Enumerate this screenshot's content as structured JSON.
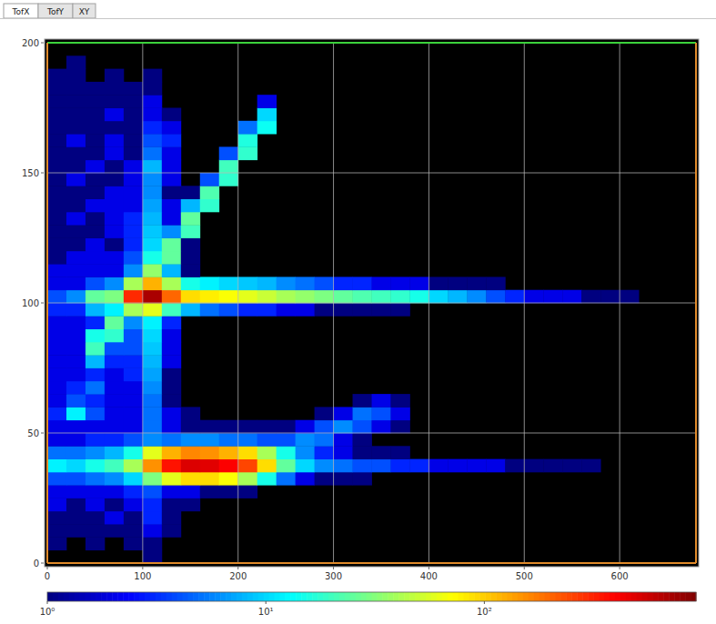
{
  "chart_data": {
    "type": "heatmap",
    "tabs": [
      "TofX",
      "TofY",
      "XY"
    ],
    "xlim": [
      0,
      680
    ],
    "ylim": [
      0,
      200
    ],
    "xticks": [
      0,
      100,
      200,
      300,
      400,
      500,
      600
    ],
    "yticks": [
      0,
      50,
      100,
      150,
      200
    ],
    "grid": true,
    "xbins": [
      0,
      20,
      40,
      60,
      80,
      100,
      120,
      140,
      160,
      180,
      200,
      220,
      240,
      260,
      280,
      300,
      320,
      340,
      360,
      380,
      400,
      420,
      440,
      460,
      480,
      500,
      520,
      540,
      560,
      580,
      600,
      620,
      640,
      660,
      680
    ],
    "ybins": [
      0,
      5,
      10,
      15,
      20,
      25,
      30,
      35,
      40,
      45,
      50,
      55,
      60,
      65,
      70,
      75,
      80,
      85,
      90,
      95,
      100,
      105,
      110,
      115,
      120,
      125,
      130,
      135,
      140,
      145,
      150,
      155,
      160,
      165,
      170,
      175,
      180,
      185,
      190,
      195,
      200
    ],
    "counts": [
      [
        0,
        0,
        0,
        0,
        0,
        1,
        0,
        0,
        0,
        0,
        0,
        0,
        0,
        0,
        0,
        0,
        0,
        0,
        0,
        0,
        0,
        0,
        0,
        0,
        0,
        0,
        0,
        0,
        0,
        0,
        0,
        0,
        0,
        0
      ],
      [
        1,
        0,
        1,
        0,
        1,
        1,
        0,
        0,
        0,
        0,
        0,
        0,
        0,
        0,
        0,
        0,
        0,
        0,
        0,
        0,
        0,
        0,
        0,
        0,
        0,
        0,
        0,
        0,
        0,
        0,
        0,
        0,
        0,
        0
      ],
      [
        1,
        1,
        1,
        1,
        1,
        2,
        1,
        0,
        0,
        0,
        0,
        0,
        0,
        0,
        0,
        0,
        0,
        0,
        0,
        0,
        0,
        0,
        0,
        0,
        0,
        0,
        0,
        0,
        0,
        0,
        0,
        0,
        0,
        0
      ],
      [
        1,
        1,
        1,
        2,
        1,
        3,
        1,
        0,
        0,
        0,
        0,
        0,
        0,
        0,
        0,
        0,
        0,
        0,
        0,
        0,
        0,
        0,
        0,
        0,
        0,
        0,
        0,
        0,
        0,
        0,
        0,
        0,
        0,
        0
      ],
      [
        2,
        1,
        2,
        1,
        2,
        3,
        1,
        1,
        0,
        0,
        0,
        0,
        0,
        0,
        0,
        0,
        0,
        0,
        0,
        0,
        0,
        0,
        0,
        0,
        0,
        0,
        0,
        0,
        0,
        0,
        0,
        0,
        0,
        0
      ],
      [
        2,
        2,
        2,
        2,
        3,
        4,
        2,
        2,
        1,
        1,
        1,
        0,
        0,
        0,
        0,
        0,
        0,
        0,
        0,
        0,
        0,
        0,
        0,
        0,
        0,
        0,
        0,
        0,
        0,
        0,
        0,
        0,
        0,
        0
      ],
      [
        4,
        4,
        5,
        6,
        10,
        30,
        60,
        90,
        90,
        70,
        40,
        15,
        5,
        2,
        1,
        1,
        1,
        0,
        0,
        0,
        0,
        0,
        0,
        0,
        0,
        0,
        0,
        0,
        0,
        0,
        0,
        0,
        0,
        0
      ],
      [
        12,
        10,
        15,
        20,
        40,
        150,
        350,
        500,
        480,
        400,
        250,
        90,
        25,
        10,
        6,
        5,
        4,
        4,
        3,
        3,
        2,
        2,
        2,
        2,
        1,
        1,
        1,
        1,
        1,
        0,
        0,
        0,
        0,
        0
      ],
      [
        5,
        5,
        6,
        8,
        15,
        60,
        120,
        160,
        150,
        120,
        90,
        40,
        15,
        6,
        3,
        2,
        1,
        1,
        1,
        0,
        0,
        0,
        0,
        0,
        0,
        0,
        0,
        0,
        0,
        0,
        0,
        0,
        0,
        0
      ],
      [
        2,
        2,
        3,
        3,
        4,
        6,
        5,
        6,
        6,
        5,
        5,
        4,
        4,
        6,
        5,
        2,
        1,
        0,
        0,
        0,
        0,
        0,
        0,
        0,
        0,
        0,
        0,
        0,
        0,
        0,
        0,
        0,
        0,
        0
      ],
      [
        2,
        2,
        2,
        2,
        2,
        5,
        2,
        1,
        1,
        1,
        1,
        1,
        1,
        2,
        4,
        6,
        4,
        2,
        1,
        0,
        0,
        0,
        0,
        0,
        0,
        0,
        0,
        0,
        0,
        0,
        0,
        0,
        0,
        0
      ],
      [
        3,
        12,
        4,
        2,
        2,
        5,
        2,
        1,
        0,
        0,
        0,
        0,
        0,
        0,
        1,
        2,
        5,
        4,
        2,
        0,
        0,
        0,
        0,
        0,
        0,
        0,
        0,
        0,
        0,
        0,
        0,
        0,
        0,
        0
      ],
      [
        2,
        4,
        3,
        2,
        2,
        5,
        1,
        0,
        0,
        0,
        0,
        0,
        0,
        0,
        0,
        0,
        1,
        2,
        1,
        0,
        0,
        0,
        0,
        0,
        0,
        0,
        0,
        0,
        0,
        0,
        0,
        0,
        0,
        0
      ],
      [
        2,
        3,
        5,
        2,
        2,
        6,
        1,
        0,
        0,
        0,
        0,
        0,
        0,
        0,
        0,
        0,
        0,
        0,
        0,
        0,
        0,
        0,
        0,
        0,
        0,
        0,
        0,
        0,
        0,
        0,
        0,
        0,
        0,
        0
      ],
      [
        2,
        2,
        3,
        2,
        3,
        7,
        1,
        0,
        0,
        0,
        0,
        0,
        0,
        0,
        0,
        0,
        0,
        0,
        0,
        0,
        0,
        0,
        0,
        0,
        0,
        0,
        0,
        0,
        0,
        0,
        0,
        0,
        0,
        0
      ],
      [
        2,
        2,
        8,
        3,
        3,
        8,
        2,
        0,
        0,
        0,
        0,
        0,
        0,
        0,
        0,
        0,
        0,
        0,
        0,
        0,
        0,
        0,
        0,
        0,
        0,
        0,
        0,
        0,
        0,
        0,
        0,
        0,
        0,
        0
      ],
      [
        2,
        2,
        20,
        4,
        4,
        9,
        2,
        0,
        0,
        0,
        0,
        0,
        0,
        0,
        0,
        0,
        0,
        0,
        0,
        0,
        0,
        0,
        0,
        0,
        0,
        0,
        0,
        0,
        0,
        0,
        0,
        0,
        0,
        0
      ],
      [
        2,
        2,
        15,
        18,
        4,
        10,
        2,
        0,
        0,
        0,
        0,
        0,
        0,
        0,
        0,
        0,
        0,
        0,
        0,
        0,
        0,
        0,
        0,
        0,
        0,
        0,
        0,
        0,
        0,
        0,
        0,
        0,
        0,
        0
      ],
      [
        2,
        2,
        3,
        25,
        6,
        12,
        3,
        0,
        0,
        0,
        0,
        0,
        0,
        0,
        0,
        0,
        0,
        0,
        0,
        0,
        0,
        0,
        0,
        0,
        0,
        0,
        0,
        0,
        0,
        0,
        0,
        0,
        0,
        0
      ],
      [
        3,
        3,
        8,
        12,
        40,
        60,
        20,
        8,
        5,
        4,
        3,
        3,
        2,
        2,
        1,
        1,
        1,
        1,
        1,
        0,
        0,
        0,
        0,
        0,
        0,
        0,
        0,
        0,
        0,
        0,
        0,
        0,
        0,
        0
      ],
      [
        4,
        6,
        25,
        30,
        300,
        700,
        200,
        90,
        80,
        70,
        60,
        50,
        40,
        35,
        30,
        25,
        22,
        20,
        18,
        15,
        10,
        8,
        6,
        4,
        3,
        2,
        2,
        2,
        1,
        1,
        1,
        0,
        0,
        0
      ],
      [
        2,
        2,
        4,
        6,
        40,
        120,
        40,
        15,
        12,
        10,
        9,
        8,
        6,
        5,
        4,
        3,
        3,
        2,
        2,
        2,
        1,
        1,
        1,
        1,
        0,
        0,
        0,
        0,
        0,
        0,
        0,
        0,
        0,
        0
      ],
      [
        2,
        2,
        2,
        2,
        6,
        35,
        8,
        1,
        0,
        0,
        0,
        0,
        0,
        0,
        0,
        0,
        0,
        0,
        0,
        0,
        0,
        0,
        0,
        0,
        0,
        0,
        0,
        0,
        0,
        0,
        0,
        0,
        0,
        0
      ],
      [
        1,
        2,
        2,
        2,
        4,
        15,
        25,
        1,
        0,
        0,
        0,
        0,
        0,
        0,
        0,
        0,
        0,
        0,
        0,
        0,
        0,
        0,
        0,
        0,
        0,
        0,
        0,
        0,
        0,
        0,
        0,
        0,
        0,
        0
      ],
      [
        1,
        1,
        2,
        1,
        3,
        10,
        25,
        1,
        0,
        0,
        0,
        0,
        0,
        0,
        0,
        0,
        0,
        0,
        0,
        0,
        0,
        0,
        0,
        0,
        0,
        0,
        0,
        0,
        0,
        0,
        0,
        0,
        0,
        0
      ],
      [
        1,
        1,
        1,
        2,
        3,
        9,
        6,
        20,
        0,
        0,
        0,
        0,
        0,
        0,
        0,
        0,
        0,
        0,
        0,
        0,
        0,
        0,
        0,
        0,
        0,
        0,
        0,
        0,
        0,
        0,
        0,
        0,
        0,
        0
      ],
      [
        1,
        2,
        1,
        2,
        3,
        8,
        2,
        25,
        0,
        0,
        0,
        0,
        0,
        0,
        0,
        0,
        0,
        0,
        0,
        0,
        0,
        0,
        0,
        0,
        0,
        0,
        0,
        0,
        0,
        0,
        0,
        0,
        0,
        0
      ],
      [
        1,
        1,
        2,
        2,
        2,
        7,
        2,
        8,
        18,
        0,
        0,
        0,
        0,
        0,
        0,
        0,
        0,
        0,
        0,
        0,
        0,
        0,
        0,
        0,
        0,
        0,
        0,
        0,
        0,
        0,
        0,
        0,
        0,
        0
      ],
      [
        1,
        1,
        1,
        2,
        2,
        6,
        1,
        1,
        22,
        0,
        0,
        0,
        0,
        0,
        0,
        0,
        0,
        0,
        0,
        0,
        0,
        0,
        0,
        0,
        0,
        0,
        0,
        0,
        0,
        0,
        0,
        0,
        0,
        0
      ],
      [
        1,
        2,
        1,
        1,
        2,
        6,
        2,
        0,
        4,
        18,
        0,
        0,
        0,
        0,
        0,
        0,
        0,
        0,
        0,
        0,
        0,
        0,
        0,
        0,
        0,
        0,
        0,
        0,
        0,
        0,
        0,
        0,
        0,
        0
      ],
      [
        1,
        1,
        2,
        1,
        2,
        8,
        2,
        0,
        0,
        20,
        0,
        0,
        0,
        0,
        0,
        0,
        0,
        0,
        0,
        0,
        0,
        0,
        0,
        0,
        0,
        0,
        0,
        0,
        0,
        0,
        0,
        0,
        0,
        0
      ],
      [
        1,
        1,
        1,
        2,
        1,
        5,
        2,
        0,
        0,
        4,
        18,
        0,
        0,
        0,
        0,
        0,
        0,
        0,
        0,
        0,
        0,
        0,
        0,
        0,
        0,
        0,
        0,
        0,
        0,
        0,
        0,
        0,
        0,
        0
      ],
      [
        1,
        2,
        1,
        2,
        1,
        4,
        3,
        0,
        0,
        0,
        16,
        0,
        0,
        0,
        0,
        0,
        0,
        0,
        0,
        0,
        0,
        0,
        0,
        0,
        0,
        0,
        0,
        0,
        0,
        0,
        0,
        0,
        0,
        0
      ],
      [
        1,
        1,
        1,
        1,
        1,
        3,
        2,
        0,
        0,
        0,
        5,
        14,
        0,
        0,
        0,
        0,
        0,
        0,
        0,
        0,
        0,
        0,
        0,
        0,
        0,
        0,
        0,
        0,
        0,
        0,
        0,
        0,
        0,
        0
      ],
      [
        1,
        1,
        1,
        2,
        1,
        2,
        1,
        0,
        0,
        0,
        0,
        10,
        0,
        0,
        0,
        0,
        0,
        0,
        0,
        0,
        0,
        0,
        0,
        0,
        0,
        0,
        0,
        0,
        0,
        0,
        0,
        0,
        0,
        0
      ],
      [
        1,
        1,
        1,
        1,
        1,
        2,
        0,
        0,
        0,
        0,
        0,
        2,
        0,
        0,
        0,
        0,
        0,
        0,
        0,
        0,
        0,
        0,
        0,
        0,
        0,
        0,
        0,
        0,
        0,
        0,
        0,
        0,
        0,
        0
      ],
      [
        1,
        1,
        1,
        1,
        1,
        1,
        0,
        0,
        0,
        0,
        0,
        0,
        0,
        0,
        0,
        0,
        0,
        0,
        0,
        0,
        0,
        0,
        0,
        0,
        0,
        0,
        0,
        0,
        0,
        0,
        0,
        0,
        0,
        0
      ],
      [
        1,
        1,
        0,
        1,
        0,
        1,
        0,
        0,
        0,
        0,
        0,
        0,
        0,
        0,
        0,
        0,
        0,
        0,
        0,
        0,
        0,
        0,
        0,
        0,
        0,
        0,
        0,
        0,
        0,
        0,
        0,
        0,
        0,
        0
      ],
      [
        0,
        1,
        0,
        0,
        0,
        0,
        0,
        0,
        0,
        0,
        0,
        0,
        0,
        0,
        0,
        0,
        0,
        0,
        0,
        0,
        0,
        0,
        0,
        0,
        0,
        0,
        0,
        0,
        0,
        0,
        0,
        0,
        0,
        0
      ],
      [
        0,
        0,
        0,
        0,
        0,
        0,
        0,
        0,
        0,
        0,
        0,
        0,
        0,
        0,
        0,
        0,
        0,
        0,
        0,
        0,
        0,
        0,
        0,
        0,
        0,
        0,
        0,
        0,
        0,
        0,
        0,
        0,
        0,
        0
      ]
    ],
    "colorbar": {
      "range": [
        1,
        930
      ],
      "log": true,
      "ticks": [
        {
          "value": 1,
          "label": "10⁰"
        },
        {
          "value": 10,
          "label": "10¹"
        },
        {
          "value": 100,
          "label": "10²"
        }
      ]
    }
  }
}
